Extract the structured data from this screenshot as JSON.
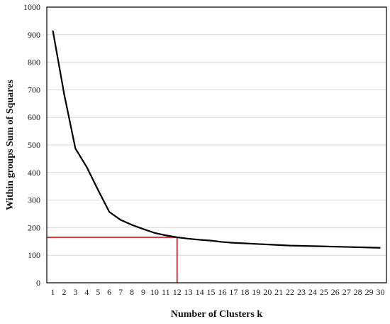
{
  "chart_data": {
    "type": "line",
    "title": "",
    "xlabel": "Number of Clusters k",
    "ylabel": "Within groups Sum of Squares",
    "x": [
      1,
      2,
      3,
      4,
      5,
      6,
      7,
      8,
      9,
      10,
      11,
      12,
      13,
      14,
      15,
      16,
      17,
      18,
      19,
      20,
      21,
      22,
      23,
      24,
      25,
      26,
      27,
      28,
      29,
      30
    ],
    "series": [
      {
        "values": [
          915,
          685,
          487,
          420,
          337,
          257,
          228,
          210,
          195,
          181,
          172,
          165,
          160,
          156,
          153,
          148,
          145,
          143,
          141,
          139,
          137,
          135,
          134,
          133,
          132,
          131,
          130,
          129,
          128,
          127
        ]
      }
    ],
    "xlim": [
      1,
      30
    ],
    "ylim": [
      0,
      1000
    ],
    "yticks": [
      0,
      100,
      200,
      300,
      400,
      500,
      600,
      700,
      800,
      900,
      1000
    ],
    "grid": "horizontal",
    "legend": "none",
    "marker": {
      "x": 12,
      "y": 165,
      "color": "#e8191e"
    },
    "line_color": "#000000"
  }
}
